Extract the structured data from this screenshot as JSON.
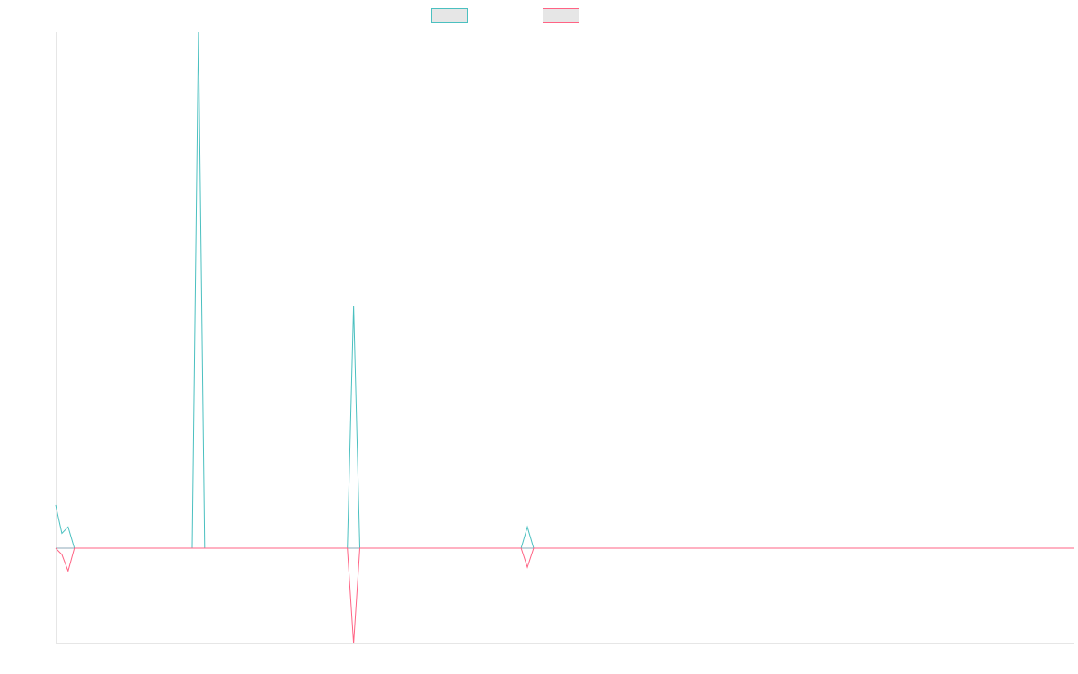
{
  "chart_data": {
    "type": "line",
    "title": "",
    "xlabel": "",
    "ylabel": "",
    "grid": false,
    "legend_position": "top-center",
    "x_count": 165,
    "ylim": [
      -15,
      80
    ],
    "colors": {
      "series_a": "#4bc0c0",
      "series_b": "#ff6384",
      "baseline": "#8fa8b8",
      "axis": "#e6e6e6",
      "legend_fill": "#e6e6e6"
    },
    "series": [
      {
        "name": "",
        "color": "#4bc0c0",
        "points": [
          [
            0,
            6.7
          ],
          [
            1,
            2.3
          ],
          [
            2,
            3.3
          ],
          [
            3,
            0
          ],
          [
            22,
            0
          ],
          [
            23,
            80
          ],
          [
            24,
            0
          ],
          [
            47,
            0
          ],
          [
            48,
            37.6
          ],
          [
            49,
            0
          ],
          [
            75,
            0
          ],
          [
            76,
            3.3
          ],
          [
            77,
            0
          ],
          [
            164,
            0
          ]
        ]
      },
      {
        "name": "",
        "color": "#ff6384",
        "points": [
          [
            0,
            0
          ],
          [
            1,
            -1
          ],
          [
            2,
            -3.6
          ],
          [
            3,
            0
          ],
          [
            47,
            0
          ],
          [
            48,
            -15
          ],
          [
            49,
            0
          ],
          [
            75,
            0
          ],
          [
            76,
            -3
          ],
          [
            77,
            0
          ],
          [
            164,
            0
          ]
        ]
      }
    ]
  }
}
